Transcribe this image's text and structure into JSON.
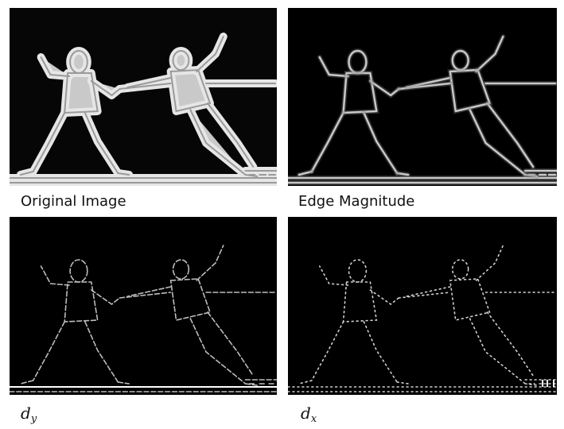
{
  "captions": {
    "original": "Original Image",
    "edge": "Edge Magnitude",
    "dy_base": "d",
    "dy_sub": "y",
    "dx_base": "d",
    "dx_sub": "x"
  }
}
